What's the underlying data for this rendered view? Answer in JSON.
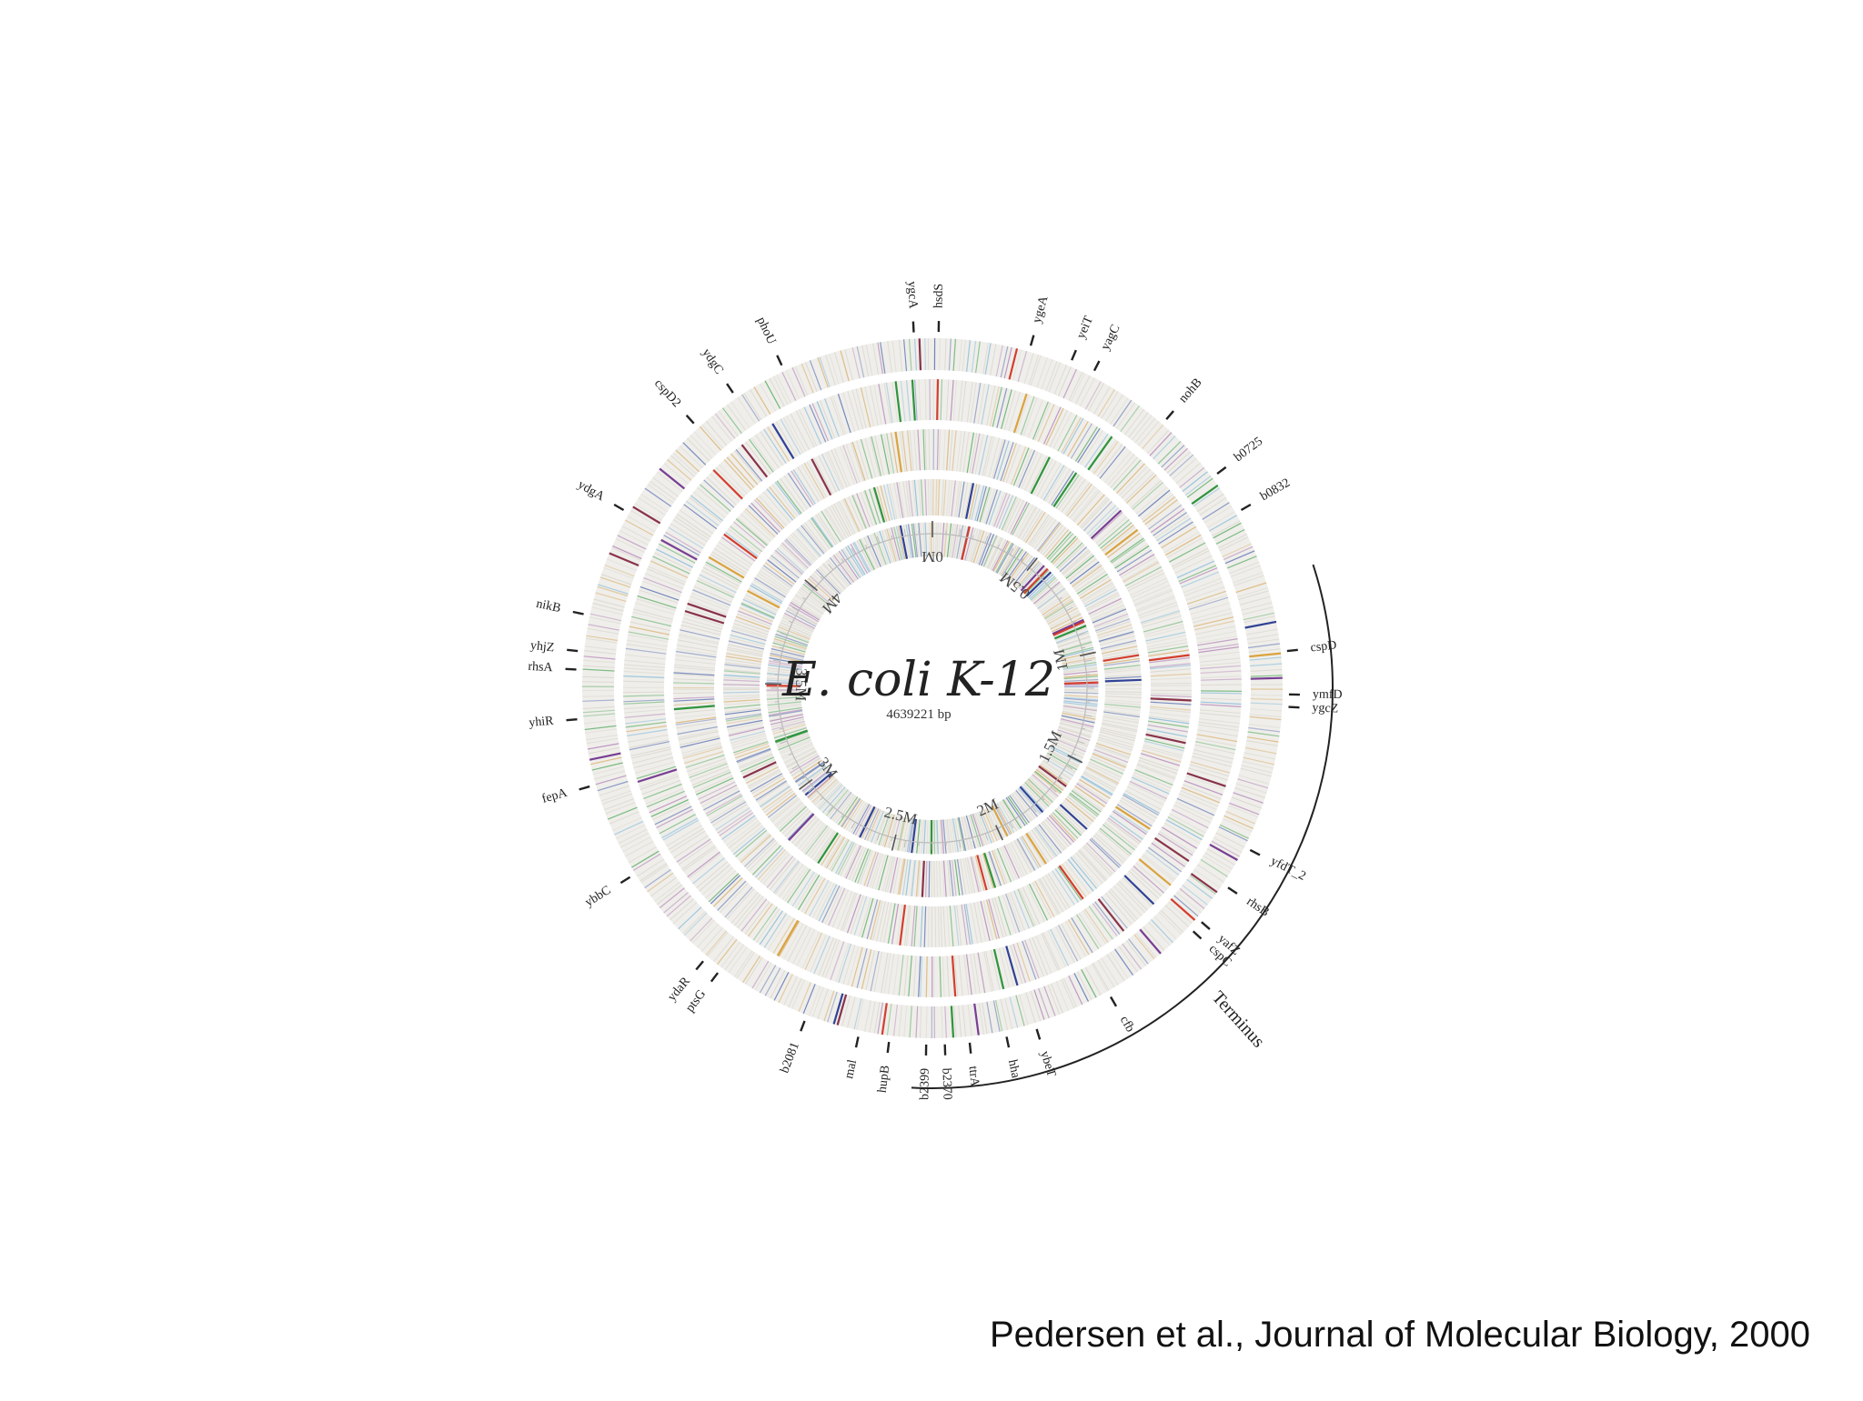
{
  "figure": {
    "title": "E. coli K-12",
    "subtitle": "4639221 bp",
    "terminus_label": "Terminus",
    "caption": "Pedersen et al., Journal of Molecular Biology, 2000",
    "scale_labels": [
      "0M",
      "0.5M",
      "1M",
      "1.5M",
      "2M",
      "2.5M",
      "3M",
      "3.5M",
      "4M"
    ],
    "gene_labels": [
      "ygcA",
      "hsdS",
      "ygeA",
      "yeiT",
      "yagC",
      "nohB",
      "b0725",
      "b0832",
      "cspD",
      "ymfD",
      "ygcZ",
      "yfdT_2",
      "rhsB",
      "yafZ",
      "cspC",
      "cfb",
      "ybeT",
      "hha",
      "ttrA",
      "b2370",
      "b2399",
      "hupB",
      "mal",
      "b2081",
      "ptsG",
      "ydaR",
      "ybbC",
      "fepA",
      "yhiR",
      "rhsA",
      "yhjZ",
      "nikB",
      "ydgA",
      "cspD2",
      "ydgC",
      "phoU"
    ],
    "track_colors": [
      "#d7a65a",
      "#3aa048",
      "#a86fb0",
      "#3b57a8",
      "#6fb0d8"
    ],
    "accent_colors": [
      "#1b2f8c",
      "#cf2a1a",
      "#1a8a2a",
      "#7d1e3a",
      "#d79a2a",
      "#6a2a8a"
    ]
  }
}
